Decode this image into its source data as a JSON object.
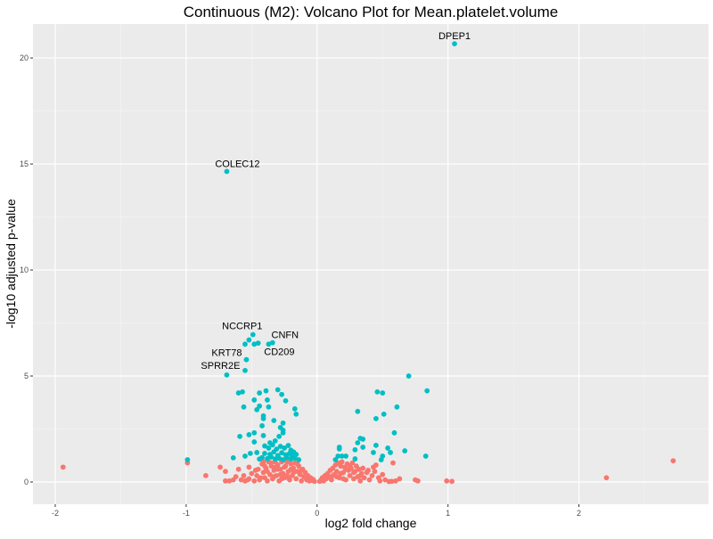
{
  "chart_data": {
    "type": "scatter",
    "title": "Continuous (M2): Volcano Plot for Mean.platelet.volume",
    "xlabel": "log2 fold change",
    "ylabel": "-log10 adjusted p-value",
    "xlim": [
      -2.17,
      2.99
    ],
    "ylim": [
      -1.05,
      21.6
    ],
    "x_ticks": [
      -2,
      -1,
      0,
      1,
      2
    ],
    "x_tick_labels": [
      "-2",
      "-1",
      "0",
      "1",
      "2"
    ],
    "y_ticks": [
      0,
      5,
      10,
      15,
      20
    ],
    "y_tick_labels": [
      "0",
      "5",
      "10",
      "15",
      "20"
    ],
    "grid": true,
    "colors": {
      "significant": "#00BFC4",
      "not_significant": "#F8766D",
      "panel": "#EBEBEB"
    },
    "labels": [
      {
        "text": "DPEP1",
        "x": 1.05,
        "y": 20.67
      },
      {
        "text": "COLEC12",
        "x": -0.69,
        "y": 14.65
      },
      {
        "text": "NCCRP1",
        "x": -0.49,
        "y": 6.95
      },
      {
        "text": "CNFN",
        "x": -0.34,
        "y": 6.57
      },
      {
        "text": "KRT78",
        "x": -0.54,
        "y": 5.77
      },
      {
        "text": "CD209",
        "x": -0.37,
        "y": 6.5
      },
      {
        "text": "SPRR2E",
        "x": -0.69,
        "y": 5.05
      }
    ],
    "series": [
      {
        "name": "significant",
        "points": [
          [
            1.05,
            20.67
          ],
          [
            -0.69,
            14.65
          ],
          [
            -0.49,
            6.95
          ],
          [
            -0.34,
            6.57
          ],
          [
            -0.37,
            6.5
          ],
          [
            -0.55,
            6.5
          ],
          [
            -0.52,
            6.7
          ],
          [
            -0.48,
            6.5
          ],
          [
            -0.45,
            6.55
          ],
          [
            -0.54,
            5.77
          ],
          [
            -0.55,
            5.26
          ],
          [
            -0.69,
            5.05
          ],
          [
            -0.6,
            4.2
          ],
          [
            -0.57,
            4.25
          ],
          [
            -0.44,
            4.2
          ],
          [
            -0.39,
            4.3
          ],
          [
            -0.3,
            4.35
          ],
          [
            -0.27,
            4.13
          ],
          [
            -0.24,
            3.83
          ],
          [
            -0.48,
            3.87
          ],
          [
            -0.38,
            3.87
          ],
          [
            -0.56,
            3.54
          ],
          [
            -0.46,
            3.41
          ],
          [
            -0.44,
            3.58
          ],
          [
            -0.37,
            3.54
          ],
          [
            -0.41,
            3.12
          ],
          [
            -0.41,
            2.99
          ],
          [
            -0.33,
            2.9
          ],
          [
            -0.17,
            3.45
          ],
          [
            -0.16,
            3.2
          ],
          [
            -0.42,
            2.65
          ],
          [
            -0.26,
            2.78
          ],
          [
            -0.28,
            2.57
          ],
          [
            -0.26,
            2.44
          ],
          [
            -0.26,
            2.32
          ],
          [
            -0.52,
            2.23
          ],
          [
            -0.48,
            2.32
          ],
          [
            -0.59,
            2.15
          ],
          [
            -0.41,
            2.19
          ],
          [
            -0.29,
            2.15
          ],
          [
            -0.48,
            1.89
          ],
          [
            -0.36,
            1.85
          ],
          [
            -0.32,
            1.94
          ],
          [
            -0.55,
            1.22
          ],
          [
            -0.51,
            1.35
          ],
          [
            -0.46,
            1.39
          ],
          [
            -0.64,
            1.14
          ],
          [
            -0.99,
            1.05
          ],
          [
            -0.4,
            1.7
          ],
          [
            -0.37,
            1.6
          ],
          [
            -0.34,
            1.75
          ],
          [
            -0.31,
            1.55
          ],
          [
            -0.28,
            1.68
          ],
          [
            -0.25,
            1.6
          ],
          [
            -0.22,
            1.72
          ],
          [
            -0.2,
            1.5
          ],
          [
            -0.18,
            1.42
          ],
          [
            -0.4,
            1.35
          ],
          [
            -0.36,
            1.3
          ],
          [
            -0.33,
            1.42
          ],
          [
            -0.3,
            1.25
          ],
          [
            -0.27,
            1.38
          ],
          [
            -0.24,
            1.28
          ],
          [
            -0.21,
            1.35
          ],
          [
            -0.19,
            1.2
          ],
          [
            -0.16,
            1.3
          ],
          [
            -0.42,
            1.15
          ],
          [
            -0.38,
            1.1
          ],
          [
            -0.35,
            1.18
          ],
          [
            -0.32,
            1.08
          ],
          [
            -0.29,
            1.12
          ],
          [
            -0.26,
            1.05
          ],
          [
            -0.23,
            1.15
          ],
          [
            -0.2,
            1.08
          ],
          [
            -0.17,
            1.12
          ],
          [
            -0.14,
            1.05
          ],
          [
            -0.44,
            1.08
          ],
          [
            0.7,
            5.0
          ],
          [
            0.84,
            4.3
          ],
          [
            0.46,
            4.25
          ],
          [
            0.5,
            4.2
          ],
          [
            0.61,
            3.54
          ],
          [
            0.31,
            3.33
          ],
          [
            0.51,
            3.2
          ],
          [
            0.45,
            2.99
          ],
          [
            0.59,
            2.32
          ],
          [
            0.33,
            2.06
          ],
          [
            0.35,
            2.02
          ],
          [
            0.31,
            1.85
          ],
          [
            0.45,
            1.73
          ],
          [
            0.54,
            1.6
          ],
          [
            0.35,
            1.64
          ],
          [
            0.29,
            1.52
          ],
          [
            0.17,
            1.64
          ],
          [
            0.17,
            1.56
          ],
          [
            0.43,
            1.39
          ],
          [
            0.56,
            1.39
          ],
          [
            0.67,
            1.47
          ],
          [
            0.83,
            1.22
          ],
          [
            0.16,
            1.22
          ],
          [
            0.19,
            1.22
          ],
          [
            0.22,
            1.22
          ],
          [
            0.29,
            1.09
          ],
          [
            0.14,
            1.05
          ],
          [
            0.5,
            1.22
          ],
          [
            0.49,
            1.05
          ]
        ]
      },
      {
        "name": "not_significant",
        "points": [
          [
            -1.94,
            0.7
          ],
          [
            -0.99,
            0.9
          ],
          [
            -0.85,
            0.3
          ],
          [
            2.21,
            0.2
          ],
          [
            2.72,
            1.0
          ],
          [
            0.99,
            0.05
          ],
          [
            1.03,
            0.03
          ],
          [
            0.75,
            0.1
          ],
          [
            0.77,
            0.05
          ],
          [
            0.6,
            0.05
          ],
          [
            0.55,
            0.02
          ],
          [
            0.57,
            0.03
          ],
          [
            0.63,
            0.15
          ],
          [
            -0.74,
            0.7
          ],
          [
            -0.7,
            0.5
          ],
          [
            -0.7,
            0.05
          ],
          [
            -0.67,
            0.05
          ],
          [
            -0.64,
            0.1
          ],
          [
            -0.62,
            0.25
          ],
          [
            -0.6,
            0.6
          ],
          [
            -0.58,
            0.1
          ],
          [
            -0.55,
            0.05
          ],
          [
            -0.52,
            0.7
          ],
          [
            -0.52,
            0.15
          ],
          [
            -0.5,
            0.4
          ],
          [
            -0.48,
            0.05
          ],
          [
            -0.46,
            0.3
          ],
          [
            -0.45,
            0.6
          ],
          [
            -0.44,
            0.1
          ],
          [
            -0.42,
            0.85
          ],
          [
            -0.41,
            0.45
          ],
          [
            -0.4,
            0.2
          ],
          [
            -0.39,
            0.65
          ],
          [
            -0.38,
            0.05
          ],
          [
            -0.37,
            0.95
          ],
          [
            -0.36,
            0.35
          ],
          [
            -0.35,
            0.75
          ],
          [
            -0.34,
            0.15
          ],
          [
            -0.33,
            0.55
          ],
          [
            -0.32,
            0.95
          ],
          [
            -0.31,
            0.3
          ],
          [
            -0.3,
            0.8
          ],
          [
            -0.29,
            0.05
          ],
          [
            -0.28,
            0.6
          ],
          [
            -0.27,
            0.95
          ],
          [
            -0.26,
            0.4
          ],
          [
            -0.25,
            0.2
          ],
          [
            -0.24,
            0.75
          ],
          [
            -0.23,
            0.95
          ],
          [
            -0.22,
            0.5
          ],
          [
            -0.21,
            0.1
          ],
          [
            -0.2,
            0.85
          ],
          [
            -0.19,
            0.3
          ],
          [
            -0.18,
            0.65
          ],
          [
            -0.17,
            0.9
          ],
          [
            -0.16,
            0.15
          ],
          [
            -0.15,
            0.5
          ],
          [
            -0.14,
            0.75
          ],
          [
            -0.13,
            0.35
          ],
          [
            -0.12,
            0.05
          ],
          [
            -0.11,
            0.6
          ],
          [
            -0.1,
            0.25
          ],
          [
            -0.09,
            0.45
          ],
          [
            -0.08,
            0.1
          ],
          [
            -0.07,
            0.3
          ],
          [
            -0.06,
            0.05
          ],
          [
            -0.05,
            0.2
          ],
          [
            -0.04,
            0.08
          ],
          [
            -0.03,
            0.12
          ],
          [
            -0.02,
            0.03
          ],
          [
            -0.38,
            0.5
          ],
          [
            -0.33,
            0.25
          ],
          [
            -0.28,
            0.35
          ],
          [
            -0.23,
            0.3
          ],
          [
            -0.18,
            0.45
          ],
          [
            -0.3,
            0.6
          ],
          [
            -0.25,
            0.7
          ],
          [
            -0.2,
            0.6
          ],
          [
            -0.35,
            0.9
          ],
          [
            -0.27,
            0.15
          ],
          [
            -0.43,
            0.2
          ],
          [
            -0.47,
            0.55
          ],
          [
            -0.56,
            0.3
          ],
          [
            -0.53,
            0.1
          ],
          [
            -0.41,
            0.95
          ],
          [
            -0.15,
            0.85
          ],
          [
            -0.12,
            0.55
          ],
          [
            -0.22,
            0.2
          ],
          [
            -0.32,
            0.7
          ],
          [
            -0.4,
            0.75
          ],
          [
            0.02,
            0.03
          ],
          [
            0.03,
            0.1
          ],
          [
            0.04,
            0.2
          ],
          [
            0.05,
            0.05
          ],
          [
            0.06,
            0.3
          ],
          [
            0.07,
            0.15
          ],
          [
            0.08,
            0.4
          ],
          [
            0.09,
            0.25
          ],
          [
            0.1,
            0.55
          ],
          [
            0.11,
            0.1
          ],
          [
            0.12,
            0.65
          ],
          [
            0.13,
            0.35
          ],
          [
            0.14,
            0.8
          ],
          [
            0.15,
            0.5
          ],
          [
            0.16,
            0.9
          ],
          [
            0.17,
            0.2
          ],
          [
            0.18,
            0.75
          ],
          [
            0.19,
            0.95
          ],
          [
            0.2,
            0.45
          ],
          [
            0.21,
            0.7
          ],
          [
            0.22,
            0.1
          ],
          [
            0.23,
            0.85
          ],
          [
            0.24,
            0.55
          ],
          [
            0.25,
            0.3
          ],
          [
            0.26,
            0.65
          ],
          [
            0.27,
            0.9
          ],
          [
            0.28,
            0.15
          ],
          [
            0.29,
            0.5
          ],
          [
            0.3,
            0.75
          ],
          [
            0.31,
            0.25
          ],
          [
            0.32,
            0.6
          ],
          [
            0.33,
            0.05
          ],
          [
            0.34,
            0.4
          ],
          [
            0.35,
            0.65
          ],
          [
            0.36,
            0.2
          ],
          [
            0.38,
            0.45
          ],
          [
            0.4,
            0.1
          ],
          [
            0.42,
            0.3
          ],
          [
            0.44,
            0.5
          ],
          [
            0.45,
            0.8
          ],
          [
            0.47,
            0.2
          ],
          [
            0.48,
            0.05
          ],
          [
            0.5,
            0.35
          ],
          [
            0.52,
            0.1
          ],
          [
            0.15,
            0.25
          ],
          [
            0.2,
            0.15
          ],
          [
            0.25,
            0.75
          ],
          [
            0.18,
            0.4
          ],
          [
            0.12,
            0.3
          ],
          [
            0.28,
            0.45
          ],
          [
            0.22,
            0.6
          ],
          [
            0.1,
            0.2
          ],
          [
            0.33,
            0.3
          ],
          [
            0.39,
            0.55
          ],
          [
            0.43,
            0.7
          ],
          [
            0.58,
            0.9
          ]
        ]
      }
    ]
  }
}
